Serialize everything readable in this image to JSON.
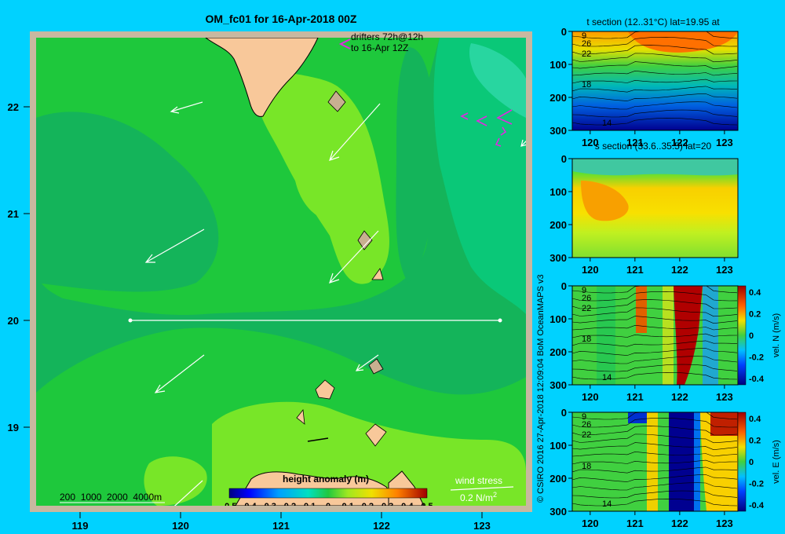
{
  "map": {
    "title": "OM_fc01 for 16-Apr-2018 00Z",
    "drifters_line1": "drifters 72h@12h",
    "drifters_line2": "to 16-Apr 12Z",
    "depth_legend": "200  1000  2000  4000m",
    "wind_stress_label": "wind stress",
    "wind_stress_scale": "0.2 N/m",
    "wind_stress_scale_sup": "2",
    "colorbar_title": "height anomaly  (m)",
    "colorbar_ticks": [
      "-0.5",
      "-0.4",
      "-0.3",
      "-0.2",
      "-0.1",
      "0",
      "0.1",
      "0.2",
      "0.3",
      "0.4",
      "0.5"
    ],
    "x_ticks": [
      "119",
      "120",
      "121",
      "122",
      "123"
    ],
    "y_ticks": [
      "22",
      "21",
      "20",
      "19"
    ],
    "credit": "© CSIRO 2016   27-Apr-2018 12:09:04 BoM OceanMAPS v3"
  },
  "panels": {
    "t_section_title": "t section (12..31°C) lat=19.95 at",
    "s_section_title": "s section (33.6..35.5) lat=20",
    "x_ticks": [
      "120",
      "121",
      "122",
      "123"
    ],
    "y_ticks": [
      "0",
      "100",
      "200",
      "300"
    ],
    "contour_labels": [
      "9",
      "26",
      "22",
      "18",
      "14"
    ],
    "veln_label": "vel. N  (m/s)",
    "vele_label": "vel. E  (m/s)",
    "vel_ticks": [
      "0.4",
      "0.2",
      "0",
      "-0.2",
      "-0.4"
    ]
  },
  "colors": {
    "background": "#00d2ff",
    "map_frame": "#c8b8a0",
    "land": "#f8c89a",
    "green_dark": "#14b45a",
    "green_mid": "#1ec83c",
    "green_light": "#78e628",
    "teal": "#0ac878",
    "drifter": "#e02ae0"
  },
  "chart_data": [
    {
      "type": "heatmap",
      "title": "OM_fc01 for 16-Apr-2018 00Z",
      "variable": "height anomaly (m)",
      "xlim": [
        118.5,
        123.5
      ],
      "ylim": [
        18.3,
        22.7
      ],
      "colorbar_range": [
        -0.5,
        0.5
      ],
      "section_line": {
        "lat": 20,
        "lon_start": 119.5,
        "lon_end": 123.0
      }
    },
    {
      "type": "heatmap",
      "title": "t section (12..31°C) lat=19.95 at",
      "xlim": [
        119.6,
        123.3
      ],
      "ylim": [
        300,
        0
      ],
      "contour_labels": [
        9,
        26,
        22,
        18,
        14
      ]
    },
    {
      "type": "heatmap",
      "title": "s section (33.6..35.5) lat=20",
      "xlim": [
        119.6,
        123.3
      ],
      "ylim": [
        300,
        0
      ]
    },
    {
      "type": "heatmap",
      "title": "vel. N (m/s)",
      "xlim": [
        119.6,
        123.3
      ],
      "ylim": [
        300,
        0
      ],
      "colorbar_range": [
        -0.4,
        0.4
      ]
    },
    {
      "type": "heatmap",
      "title": "vel. E (m/s)",
      "xlim": [
        119.6,
        123.3
      ],
      "ylim": [
        300,
        0
      ],
      "colorbar_range": [
        -0.4,
        0.4
      ]
    }
  ]
}
